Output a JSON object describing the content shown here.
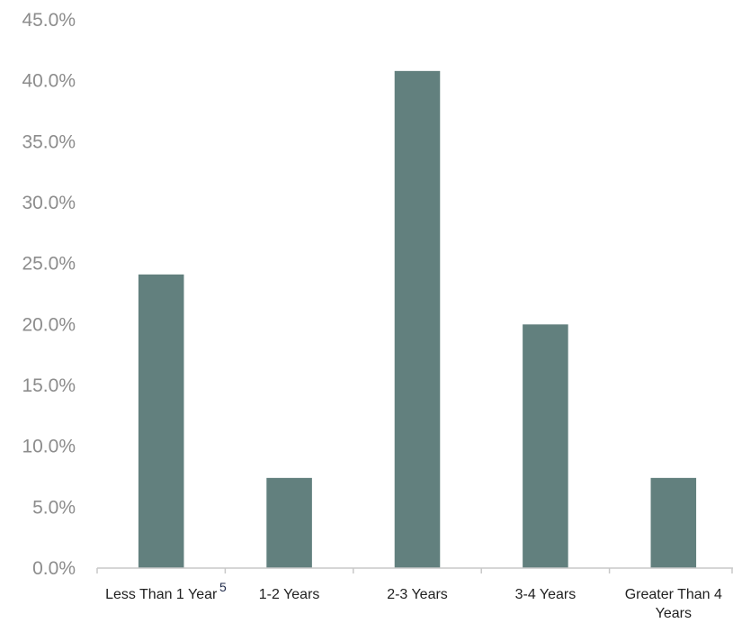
{
  "chart_data": {
    "type": "bar",
    "categories": [
      "Less Than 1 Year",
      "1-2 Years",
      "2-3 Years",
      "3-4 Years",
      "Greater Than 4 Years"
    ],
    "values": [
      24.1,
      7.4,
      40.8,
      20.0,
      7.4
    ],
    "ylim": [
      0,
      45
    ],
    "yticks": [
      "0.0%",
      "5.0%",
      "10.0%",
      "15.0%",
      "20.0%",
      "25.0%",
      "30.0%",
      "35.0%",
      "40.0%",
      "45.0%"
    ],
    "grid": false,
    "legend": "none",
    "bar_color": "#62807e",
    "annotation": "5"
  }
}
